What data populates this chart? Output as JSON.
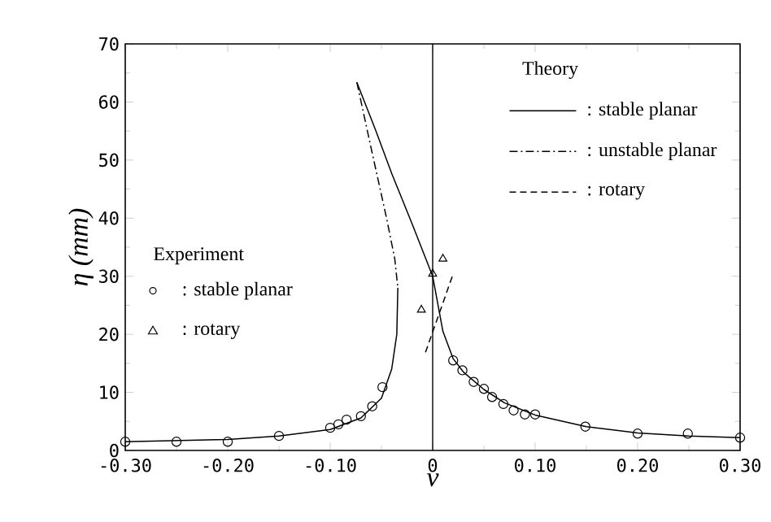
{
  "chart_data": {
    "type": "line",
    "xlabel": "ν",
    "ylabel": "η (mm)",
    "xlim": [
      -0.3,
      0.3
    ],
    "ylim": [
      0,
      70
    ],
    "xticks": [
      {
        "value": -0.3,
        "label": "-0.30"
      },
      {
        "value": -0.2,
        "label": "-0.20"
      },
      {
        "value": -0.1,
        "label": "-0.10"
      },
      0,
      {
        "value": 0.1,
        "label": "0.10"
      },
      {
        "value": 0.2,
        "label": "0.20"
      },
      {
        "value": 0.3,
        "label": "0.30"
      }
    ],
    "yticks": [
      0,
      10,
      20,
      30,
      40,
      50,
      60,
      70
    ],
    "legend": "top right",
    "annotations": [
      "Theory",
      "Experiment"
    ],
    "ref_lines": [
      {
        "axis": "x",
        "value": 0,
        "color": "#000000",
        "line_style": "solid"
      }
    ],
    "series": [
      {
        "name": ": stable planar",
        "line_style": "solid",
        "marker": "none",
        "color": "#000000",
        "x": [
          -0.3,
          -0.25,
          -0.2,
          -0.15,
          -0.1,
          -0.07,
          -0.05,
          -0.04,
          -0.035,
          -0.034
        ],
        "values": [
          1.5,
          1.7,
          1.9,
          2.5,
          3.6,
          5.6,
          9,
          14,
          20,
          28
        ]
      },
      {
        "line_style": "solid",
        "marker": "none",
        "color": "#000000",
        "x": [
          -0.074,
          -0.056,
          -0.04,
          -0.02,
          0,
          0.01,
          0.02,
          0.03,
          0.05,
          0.07,
          0.1,
          0.15,
          0.2,
          0.25,
          0.3
        ],
        "values": [
          63.4,
          55.3,
          47.7,
          39,
          30,
          20.5,
          15.8,
          13.5,
          10.5,
          8.2,
          6.1,
          4.1,
          3.0,
          2.5,
          2.2
        ]
      },
      {
        "name": ": unstable planar",
        "line_style": "dashdotted",
        "marker": "none",
        "color": "#000000",
        "x": [
          -0.074,
          -0.06,
          -0.045,
          -0.037,
          -0.034
        ],
        "values": [
          63.4,
          52,
          40,
          33,
          28
        ]
      },
      {
        "name": ": rotary",
        "line_style": "dashed",
        "marker": "none",
        "color": "#000000",
        "x": [
          -0.007,
          0.02
        ],
        "values": [
          16.9,
          30.4
        ]
      },
      {
        "name": ": stable planar",
        "type": "scatter",
        "marker": "circle",
        "color": "#000000",
        "x": [
          -0.3,
          -0.25,
          -0.2,
          -0.15,
          -0.1,
          -0.092,
          -0.084,
          -0.07,
          -0.059,
          -0.049,
          0.02,
          0.029,
          0.04,
          0.05,
          0.058,
          0.069,
          0.079,
          0.09,
          0.1,
          0.149,
          0.2,
          0.249,
          0.3
        ],
        "values": [
          1.5,
          1.5,
          1.5,
          2.5,
          3.9,
          4.5,
          5.3,
          5.9,
          7.6,
          10.9,
          15.5,
          13.8,
          11.8,
          10.6,
          9.2,
          8.0,
          6.9,
          6.2,
          6.2,
          4.1,
          2.9,
          2.9,
          2.2
        ]
      },
      {
        "name": ": rotary",
        "type": "scatter",
        "marker": "triangle",
        "color": "#000000",
        "x": [
          -0.011,
          0,
          0.01
        ],
        "values": [
          24.2,
          30.4,
          33.0
        ]
      }
    ]
  }
}
